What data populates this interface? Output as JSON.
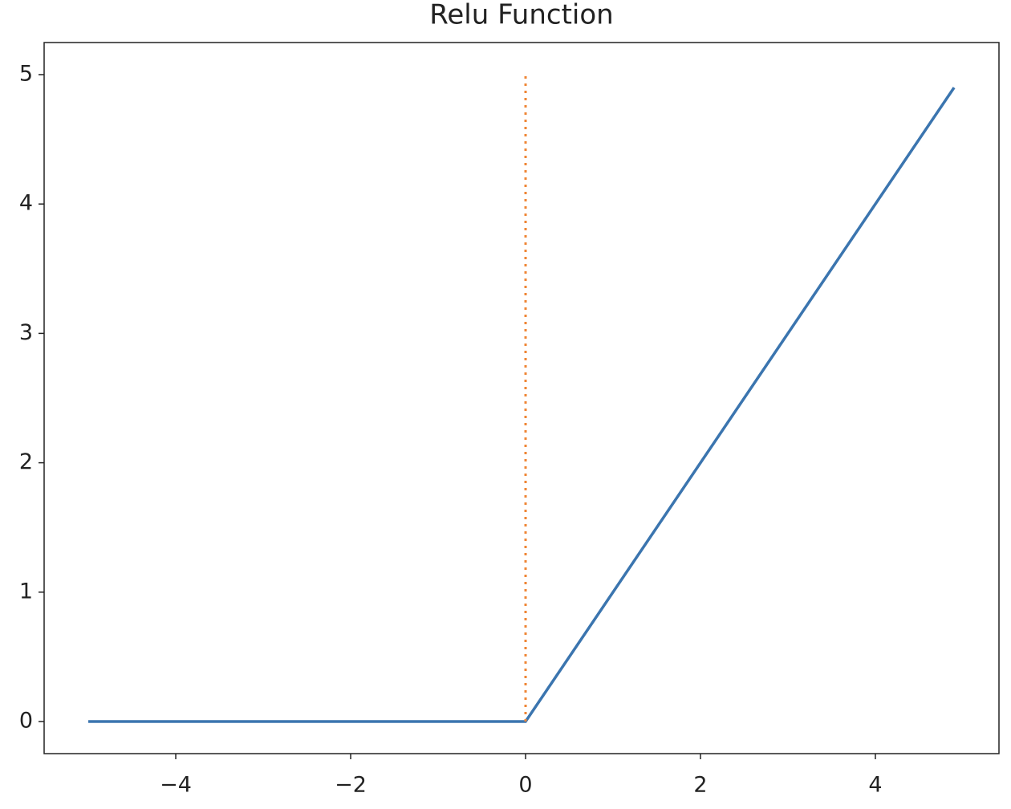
{
  "chart_data": {
    "type": "line",
    "title": "Relu Function",
    "series": [
      {
        "color": "#3b75af",
        "linestyle": "solid",
        "x": [
          -5,
          0,
          4.9
        ],
        "values": [
          0,
          0,
          4.9
        ]
      },
      {
        "color": "#ef8636",
        "linestyle": "dotted",
        "x": [
          0,
          0
        ],
        "values": [
          0,
          5
        ]
      }
    ],
    "xlim": [
      -5.505,
      5.413
    ],
    "ylim": [
      -0.248,
      5.248
    ],
    "xticks": [
      {
        "value": -4,
        "label": "−4"
      },
      {
        "value": -2,
        "label": "−2"
      },
      0,
      2,
      4
    ],
    "yticks": [
      0,
      1,
      2,
      3,
      4,
      5
    ],
    "grid": false
  }
}
